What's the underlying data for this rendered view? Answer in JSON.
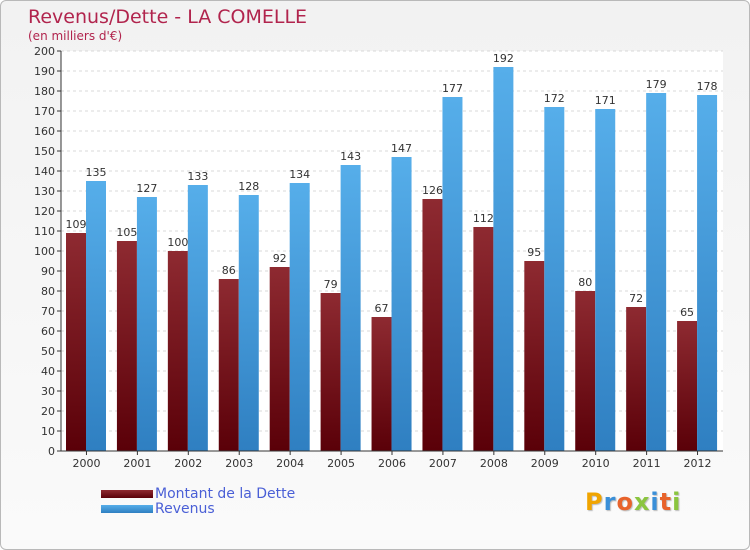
{
  "header": {
    "title": "Revenus/Dette - LA COMELLE",
    "subtitle": "(en milliers d'€)"
  },
  "legend": {
    "items": [
      {
        "label": "Montant de la Dette",
        "color": "#6b0f14"
      },
      {
        "label": "Revenus",
        "color": "#4aa3e3"
      }
    ]
  },
  "logo": {
    "text": "Proxiti"
  },
  "chart_data": {
    "type": "bar",
    "title": "Revenus/Dette - LA COMELLE",
    "subtitle": "(en milliers d'€)",
    "categories": [
      "2000",
      "2001",
      "2002",
      "2003",
      "2004",
      "2005",
      "2006",
      "2007",
      "2008",
      "2009",
      "2010",
      "2011",
      "2012"
    ],
    "series": [
      {
        "name": "Montant de la Dette",
        "color": "#7a1c22",
        "values": [
          109,
          105,
          100,
          86,
          92,
          79,
          67,
          126,
          112,
          95,
          80,
          72,
          65
        ]
      },
      {
        "name": "Revenus",
        "color": "#4aa3e3",
        "values": [
          135,
          127,
          133,
          128,
          134,
          143,
          147,
          177,
          192,
          172,
          171,
          179,
          178
        ]
      }
    ],
    "ylim": [
      0,
      200
    ],
    "yticks": [
      0,
      10,
      20,
      30,
      40,
      50,
      60,
      70,
      80,
      90,
      100,
      110,
      120,
      130,
      140,
      150,
      160,
      170,
      180,
      190,
      200
    ],
    "grid": true,
    "legend_position": "bottom-left"
  }
}
